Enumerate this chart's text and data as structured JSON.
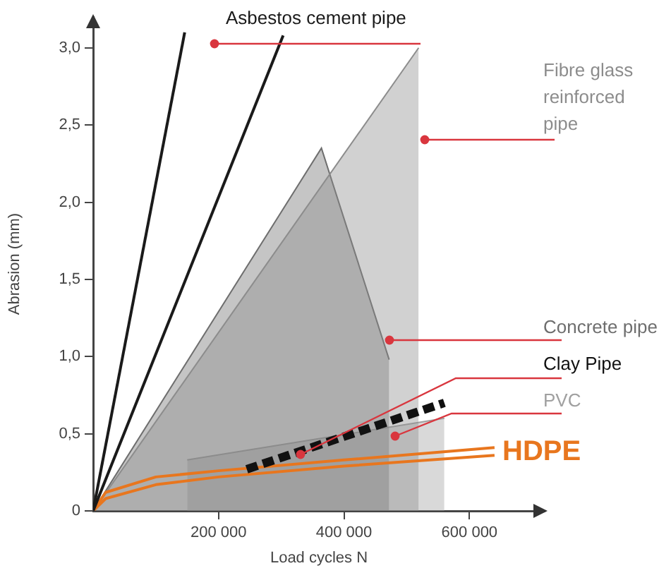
{
  "chart_data": {
    "type": "line",
    "xlabel": "Load cycles N",
    "ylabel": "Abrasion (mm)",
    "xlim": [
      0,
      720000
    ],
    "ylim": [
      0,
      3.2
    ],
    "xticks": [
      {
        "value": 200000,
        "label": "200 000"
      },
      {
        "value": 400000,
        "label": "400 000"
      },
      {
        "value": 600000,
        "label": "600 000"
      }
    ],
    "yticks": [
      {
        "value": 0,
        "label": "0"
      },
      {
        "value": 0.5,
        "label": "0,5"
      },
      {
        "value": 1,
        "label": "1,0"
      },
      {
        "value": 1.5,
        "label": "1,5"
      },
      {
        "value": 2,
        "label": "2,0"
      },
      {
        "value": 2.5,
        "label": "2,5"
      },
      {
        "value": 3,
        "label": "3,0"
      }
    ],
    "grid": false,
    "legend": false,
    "marker": "none",
    "series": [
      {
        "name": "Asbestos cement pipe",
        "type": "line",
        "color": "#1a1a1a",
        "x": [
          0,
          146000
        ],
        "values": [
          0,
          3.1
        ]
      },
      {
        "type": "line",
        "color": "#1a1a1a",
        "x": [
          0,
          303000
        ],
        "values": [
          0,
          3.08
        ]
      },
      {
        "name": "Fibre glass reinforced pipe",
        "type": "area",
        "color": "#8c8c8c",
        "x": [
          0,
          519000
        ],
        "values": [
          0,
          3.0
        ]
      },
      {
        "name": "Concrete pipe",
        "type": "area",
        "color": "#6e6e6e",
        "x": [
          0,
          364000,
          472000
        ],
        "values": [
          0,
          2.35,
          0.98
        ]
      },
      {
        "name": "Clay Pipe",
        "type": "line",
        "color": "#111111",
        "line_style": "dashed",
        "x": [
          245000,
          560000
        ],
        "values": [
          0.27,
          0.7
        ]
      },
      {
        "name": "PVC",
        "type": "area",
        "color": "#a0a0a0",
        "x": [
          150000,
          560000
        ],
        "values": [
          0.33,
          0.6
        ]
      },
      {
        "name": "HDPE",
        "type": "line",
        "color": "#e8761e",
        "x": [
          0,
          20000,
          100000,
          200000,
          400000,
          640000
        ],
        "values": [
          0,
          0.12,
          0.22,
          0.26,
          0.33,
          0.41
        ]
      },
      {
        "type": "line",
        "color": "#e8761e",
        "x": [
          0,
          20000,
          100000,
          200000,
          400000,
          640000
        ],
        "values": [
          0,
          0.08,
          0.17,
          0.22,
          0.29,
          0.36
        ]
      }
    ]
  }
}
